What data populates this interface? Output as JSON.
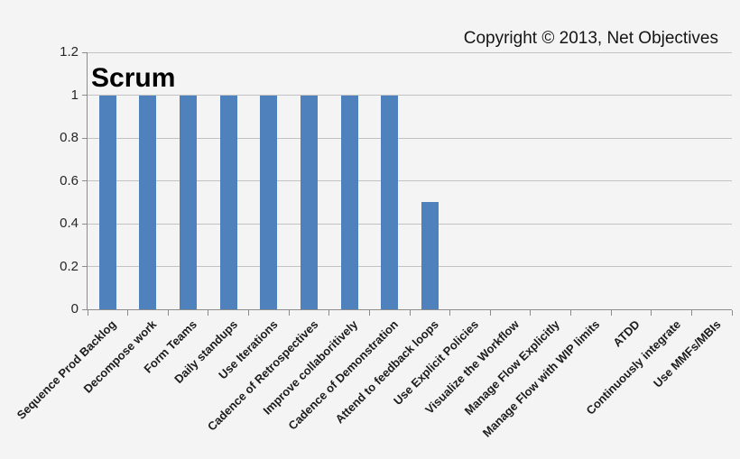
{
  "chart_data": {
    "type": "bar",
    "title": "Scrum",
    "copyright": "Copyright © 2013, Net Objectives",
    "categories": [
      "Sequence Prod Backlog",
      "Decompose work",
      "Form Teams",
      "Daily standups",
      "Use Iterations",
      "Cadence of Retrospectives",
      "Improve collaboritively",
      "Cadence of Demonstration",
      "Attend to feedback loops",
      "Use Explicit Policies",
      "Visualize the Workflow",
      "Manage Flow Explicitly",
      "Manage Flow with WIP limits",
      "ATDD",
      "Continuously integrate",
      "Use MMFs/MBIs"
    ],
    "values": [
      1,
      1,
      1,
      1,
      1,
      1,
      1,
      1,
      0.5,
      0,
      0,
      0,
      0,
      0,
      0,
      0
    ],
    "xlabel": "",
    "ylabel": "",
    "ylim": [
      0,
      1.2
    ],
    "yticks": [
      0,
      0.2,
      0.4,
      0.6,
      0.8,
      1,
      1.2
    ],
    "ytick_labels": [
      "0",
      "0.2",
      "0.4",
      "0.6",
      "0.8",
      "1",
      "1.2"
    ],
    "grid": true,
    "legend_position": "none",
    "colors": {
      "bar": "#4f81bd",
      "background": "#f4f4f4",
      "gridline": "#c2c2c2",
      "axis": "#8c8c8c",
      "text": "#1c1c1c"
    }
  }
}
